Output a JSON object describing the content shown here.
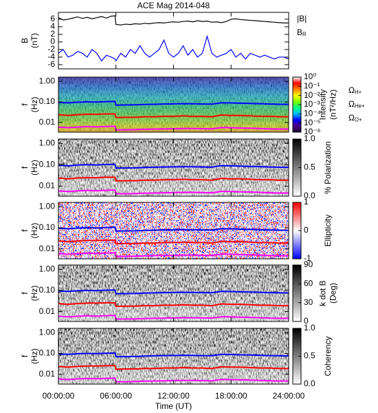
{
  "chart_data": [
    {
      "type": "line",
      "title": "ACE Mag 2014-048",
      "ylabel": [
        "B",
        "(nT)"
      ],
      "x": [
        0,
        0.5,
        1,
        1.5,
        2,
        2.5,
        3,
        3.5,
        4,
        4.5,
        5,
        5.5,
        5.9,
        6,
        6.5,
        7,
        7.5,
        8,
        8.5,
        9,
        9.5,
        10,
        10.5,
        11,
        11.5,
        12,
        12.5,
        13,
        13.5,
        14,
        14.5,
        15,
        15.5,
        16,
        16.5,
        17,
        17.5,
        18,
        18.5,
        19,
        19.5,
        20,
        20.5,
        21,
        21.5,
        22,
        22.5,
        23,
        23.5,
        24
      ],
      "xlim": [
        0,
        24
      ],
      "xticks": [
        0,
        6,
        12,
        18,
        24
      ],
      "ylim": [
        -7.1,
        7.8
      ],
      "yticks": [
        -6,
        -4,
        -2,
        0,
        2,
        4,
        6
      ],
      "series": [
        {
          "name": "|B|",
          "color": "#000000",
          "values": [
            6.4,
            5.8,
            6.0,
            6.3,
            6.6,
            6.2,
            6.5,
            6.1,
            6.4,
            6.7,
            6.3,
            6.8,
            6.9,
            4.6,
            4.5,
            4.7,
            4.6,
            4.8,
            4.7,
            4.9,
            4.8,
            5.0,
            5.1,
            5.0,
            5.2,
            5.3,
            5.2,
            5.4,
            5.5,
            5.3,
            5.6,
            5.4,
            5.5,
            5.2,
            5.3,
            5.1,
            5.4,
            6.0,
            6.1,
            5.9,
            5.8,
            5.7,
            5.6,
            5.5,
            5.4,
            5.3,
            5.2,
            5.1,
            5.0,
            5.0
          ]
        },
        {
          "name": "BR",
          "color": "#0000ff",
          "values": [
            -3,
            -2,
            -4,
            -3.5,
            -2.5,
            -3,
            -4,
            -2,
            -3,
            -5,
            -3.5,
            -4,
            -4.5,
            -5,
            -3,
            -4,
            -2,
            -3,
            -1,
            -3,
            -4,
            -3,
            -2,
            0.5,
            -3,
            -4,
            -3,
            -1,
            -3.5,
            -2,
            -4,
            -3,
            1.5,
            -3,
            -4,
            -3.5,
            -3,
            -2,
            -4,
            -3,
            -4.5,
            -3,
            -3.5,
            -4,
            -3.5,
            -4,
            -4.5,
            -4,
            -4,
            -4.5
          ]
        }
      ]
    },
    {
      "type": "spectrogram",
      "ylabel": [
        "f",
        "(Hz)"
      ],
      "log": true,
      "ylim": [
        0.0034,
        1.6
      ],
      "yticks": [
        {
          "value": 1,
          "label": "1.00"
        },
        {
          "value": 0.1,
          "label": "0.10"
        },
        {
          "value": 0.01,
          "label": "0.01"
        }
      ],
      "xlim": [
        0,
        24
      ],
      "xticks": [
        0,
        6,
        12,
        18,
        24
      ],
      "x": [
        0,
        1,
        2,
        3,
        4,
        5,
        5.9,
        6,
        7,
        8,
        9,
        10,
        11,
        12,
        13,
        14,
        15,
        16,
        17,
        18,
        19,
        20,
        21,
        22,
        23,
        24
      ],
      "series": [
        {
          "name": "ΩH+",
          "color": "#0000ff",
          "values": [
            0.095,
            0.09,
            0.097,
            0.1,
            0.098,
            0.103,
            0.105,
            0.07,
            0.071,
            0.072,
            0.075,
            0.077,
            0.079,
            0.08,
            0.082,
            0.081,
            0.079,
            0.078,
            0.091,
            0.089,
            0.086,
            0.084,
            0.082,
            0.079,
            0.077,
            0.076
          ]
        },
        {
          "name": "ΩHe+",
          "color": "#ff0000",
          "values": [
            0.024,
            0.022,
            0.024,
            0.025,
            0.025,
            0.026,
            0.026,
            0.0175,
            0.018,
            0.018,
            0.019,
            0.019,
            0.02,
            0.02,
            0.021,
            0.02,
            0.02,
            0.019,
            0.023,
            0.022,
            0.022,
            0.021,
            0.02,
            0.02,
            0.019,
            0.019
          ]
        },
        {
          "name": "ΩO+",
          "color": "#ff00ff",
          "values": [
            0.006,
            0.0056,
            0.006,
            0.0063,
            0.0061,
            0.0064,
            0.0066,
            0.0044,
            0.0044,
            0.0045,
            0.0047,
            0.0048,
            0.0049,
            0.005,
            0.0051,
            0.0051,
            0.005,
            0.0049,
            0.0057,
            0.0056,
            0.0054,
            0.0053,
            0.0051,
            0.0049,
            0.0048,
            0.0048
          ]
        }
      ],
      "colorbar": {
        "label": [
          "Intensity",
          "(nT²/Hz)"
        ],
        "log": true,
        "lim": [
          1e-06,
          1
        ],
        "ticks": [
          {
            "value": 1,
            "label": "10⁰"
          },
          {
            "value": 0.1,
            "label": "10⁻¹"
          },
          {
            "value": 0.01,
            "label": "10⁻²"
          },
          {
            "value": 0.001,
            "label": "10⁻³"
          },
          {
            "value": 0.0001,
            "label": "10⁻⁴"
          },
          {
            "value": 1e-05,
            "label": "10⁻⁵"
          },
          {
            "value": 1e-06,
            "label": "10⁻⁶"
          }
        ],
        "colormap": [
          "#1a0033",
          "#4b0082",
          "#0000ff",
          "#00bfff",
          "#00ff80",
          "#80ff00",
          "#ffff00",
          "#ff8000",
          "#ff0000",
          "#ffffff"
        ]
      }
    },
    {
      "type": "spectrogram",
      "ylabel": [
        "f",
        "(Hz)"
      ],
      "log": true,
      "ylim": [
        0.0034,
        1.6
      ],
      "yticks": [
        {
          "value": 1,
          "label": "1.00"
        },
        {
          "value": 0.1,
          "label": "0.10"
        },
        {
          "value": 0.01,
          "label": "0.01"
        }
      ],
      "xlim": [
        0,
        24
      ],
      "xticks": [
        0,
        6,
        12,
        18,
        24
      ],
      "colorbar": {
        "label": [
          "% Polarization"
        ],
        "lim": [
          0,
          1
        ],
        "ticks": [
          {
            "value": 0,
            "label": "0.0"
          },
          0.5,
          {
            "value": 1,
            "label": "1.0"
          }
        ],
        "colormap": [
          "#ffffff",
          "#000000"
        ]
      }
    },
    {
      "type": "spectrogram",
      "ylabel": [
        "f",
        "(Hz)"
      ],
      "log": true,
      "ylim": [
        0.0034,
        1.6
      ],
      "yticks": [
        {
          "value": 1,
          "label": "1.00"
        },
        {
          "value": 0.1,
          "label": "0.10"
        },
        {
          "value": 0.01,
          "label": "0.01"
        }
      ],
      "xlim": [
        0,
        24
      ],
      "xticks": [
        0,
        6,
        12,
        18,
        24
      ],
      "colorbar": {
        "label": [
          "Ellipticity"
        ],
        "lim": [
          -1,
          1
        ],
        "ticks": [
          -1,
          0,
          1
        ],
        "colormap": [
          "#0000ff",
          "#ffffff",
          "#ff0000"
        ]
      }
    },
    {
      "type": "spectrogram",
      "ylabel": [
        "f",
        "(Hz)"
      ],
      "log": true,
      "ylim": [
        0.0034,
        1.6
      ],
      "yticks": [
        {
          "value": 1,
          "label": "1.00"
        },
        {
          "value": 0.1,
          "label": "0.10"
        },
        {
          "value": 0.01,
          "label": "0.01"
        }
      ],
      "xlim": [
        0,
        24
      ],
      "xticks": [
        0,
        6,
        12,
        18,
        24
      ],
      "colorbar": {
        "label": [
          "k dot B",
          "(Deg)"
        ],
        "lim": [
          0,
          90
        ],
        "ticks": [
          0,
          30,
          60,
          90
        ],
        "colormap": [
          "#ffffff",
          "#000000"
        ]
      }
    },
    {
      "type": "spectrogram",
      "ylabel": [
        "f",
        "(Hz)"
      ],
      "log": true,
      "ylim": [
        0.0034,
        1.6
      ],
      "yticks": [
        {
          "value": 1,
          "label": "1.00"
        },
        {
          "value": 0.1,
          "label": "0.10"
        },
        {
          "value": 0.01,
          "label": "0.01"
        }
      ],
      "xlim": [
        0,
        24
      ],
      "xticks": [
        {
          "value": 0,
          "label": "00:00:00"
        },
        {
          "value": 6,
          "label": "06:00:00"
        },
        {
          "value": 12,
          "label": "12:00:00"
        },
        {
          "value": 18,
          "label": "18:00:00"
        },
        {
          "value": 24,
          "label": "24:00:00"
        }
      ],
      "xlabel": "Time (UT)",
      "colorbar": {
        "label": [
          "Coherency"
        ],
        "lim": [
          0,
          1
        ],
        "ticks": [
          {
            "value": 0,
            "label": "0.0"
          },
          0.5,
          {
            "value": 1,
            "label": "1.0"
          }
        ],
        "colormap": [
          "#ffffff",
          "#000000"
        ]
      }
    }
  ]
}
